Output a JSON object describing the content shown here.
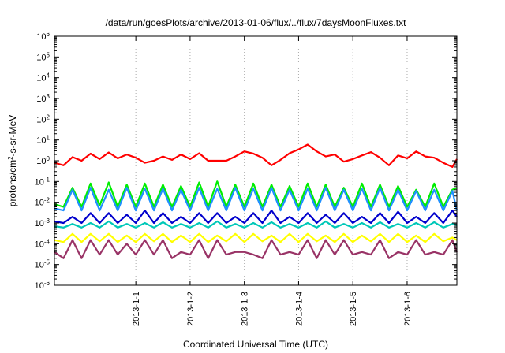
{
  "chart_data": {
    "type": "line",
    "title": "/data/run/goesPlots/archive/2013-01-06/flux/../flux/7daysMoonFluxes.txt",
    "xlabel": "Coordinated Universal Time (UTC)",
    "ylabel": "protons/cm2-s-sr-MeV",
    "ylabel_parts": {
      "pre": "protons/cm",
      "sup": "2",
      "post": "-s-sr-MeV"
    },
    "y_scale": "log",
    "ylim": [
      1e-06,
      1000000.0
    ],
    "xlim": [
      "2012-12-30T12:00",
      "2013-01-06T22:00"
    ],
    "y_ticks": [
      {
        "base": "10",
        "exp": "-6",
        "value": 1e-06
      },
      {
        "base": "10",
        "exp": "-5",
        "value": 1e-05
      },
      {
        "base": "10",
        "exp": "-4",
        "value": 0.0001
      },
      {
        "base": "10",
        "exp": "-3",
        "value": 0.001
      },
      {
        "base": "10",
        "exp": "-2",
        "value": 0.01
      },
      {
        "base": "10",
        "exp": "-1",
        "value": 0.1
      },
      {
        "base": "10",
        "exp": "0",
        "value": 1
      },
      {
        "base": "10",
        "exp": "1",
        "value": 10
      },
      {
        "base": "10",
        "exp": "2",
        "value": 100
      },
      {
        "base": "10",
        "exp": "3",
        "value": 1000
      },
      {
        "base": "10",
        "exp": "4",
        "value": 10000
      },
      {
        "base": "10",
        "exp": "5",
        "value": 100000
      },
      {
        "base": "10",
        "exp": "6",
        "value": 1000000
      }
    ],
    "x_ticks": [
      {
        "label": "2013-1-1",
        "date": "2013-01-01"
      },
      {
        "label": "2013-1-2",
        "date": "2013-01-02"
      },
      {
        "label": "2013-1-3",
        "date": "2013-01-03"
      },
      {
        "label": "2013-1-4",
        "date": "2013-01-04"
      },
      {
        "label": "2013-1-5",
        "date": "2013-01-05"
      },
      {
        "label": "2013-1-6",
        "date": "2013-01-06"
      }
    ],
    "grid": true,
    "legend": "none",
    "x": [
      "2012-12-30T12:00",
      "2012-12-30T16:00",
      "2012-12-30T20:00",
      "2012-12-31T00:00",
      "2012-12-31T04:00",
      "2012-12-31T08:00",
      "2012-12-31T12:00",
      "2012-12-31T16:00",
      "2012-12-31T20:00",
      "2013-01-01T00:00",
      "2013-01-01T04:00",
      "2013-01-01T08:00",
      "2013-01-01T12:00",
      "2013-01-01T16:00",
      "2013-01-01T20:00",
      "2013-01-02T00:00",
      "2013-01-02T04:00",
      "2013-01-02T08:00",
      "2013-01-02T12:00",
      "2013-01-02T16:00",
      "2013-01-02T20:00",
      "2013-01-03T00:00",
      "2013-01-03T04:00",
      "2013-01-03T08:00",
      "2013-01-03T12:00",
      "2013-01-03T16:00",
      "2013-01-03T20:00",
      "2013-01-04T00:00",
      "2013-01-04T04:00",
      "2013-01-04T08:00",
      "2013-01-04T12:00",
      "2013-01-04T16:00",
      "2013-01-04T20:00",
      "2013-01-05T00:00",
      "2013-01-05T04:00",
      "2013-01-05T08:00",
      "2013-01-05T12:00",
      "2013-01-05T16:00",
      "2013-01-05T20:00",
      "2013-01-06T00:00",
      "2013-01-06T04:00",
      "2013-01-06T08:00",
      "2013-01-06T12:00",
      "2013-01-06T16:00",
      "2013-01-06T20:00",
      "2013-01-06T22:00"
    ],
    "series": [
      {
        "color": "#ff0000",
        "values": [
          0.8,
          0.6,
          1.5,
          1.0,
          2.2,
          1.2,
          2.5,
          1.3,
          2.0,
          1.4,
          0.8,
          1.0,
          1.6,
          1.1,
          2.0,
          1.2,
          2.3,
          1.0,
          1.0,
          1.0,
          1.6,
          2.8,
          2.2,
          1.4,
          0.6,
          1.1,
          2.3,
          3.5,
          6.0,
          2.8,
          1.6,
          2.0,
          0.9,
          1.2,
          1.8,
          2.6,
          1.4,
          0.6,
          1.8,
          1.3,
          2.8,
          1.6,
          1.4,
          0.8,
          0.5,
          1.2
        ]
      },
      {
        "color": "#00ee00",
        "values": [
          0.008,
          0.006,
          0.05,
          0.006,
          0.08,
          0.007,
          0.09,
          0.006,
          0.07,
          0.006,
          0.08,
          0.006,
          0.07,
          0.006,
          0.06,
          0.006,
          0.09,
          0.006,
          0.1,
          0.006,
          0.07,
          0.006,
          0.08,
          0.006,
          0.07,
          0.006,
          0.06,
          0.006,
          0.08,
          0.006,
          0.07,
          0.006,
          0.05,
          0.006,
          0.08,
          0.006,
          0.07,
          0.006,
          0.06,
          0.006,
          0.04,
          0.006,
          0.08,
          0.006,
          0.04,
          0.05
        ]
      },
      {
        "color": "#2090ff",
        "values": [
          0.005,
          0.004,
          0.04,
          0.004,
          0.05,
          0.004,
          0.04,
          0.004,
          0.05,
          0.004,
          0.045,
          0.004,
          0.045,
          0.004,
          0.04,
          0.004,
          0.05,
          0.004,
          0.045,
          0.004,
          0.05,
          0.004,
          0.045,
          0.004,
          0.05,
          0.004,
          0.04,
          0.004,
          0.045,
          0.004,
          0.05,
          0.004,
          0.04,
          0.004,
          0.045,
          0.004,
          0.05,
          0.004,
          0.04,
          0.004,
          0.035,
          0.004,
          0.04,
          0.004,
          0.035,
          0.004
        ]
      },
      {
        "color": "#0000cc",
        "values": [
          0.0012,
          0.001,
          0.002,
          0.001,
          0.003,
          0.001,
          0.003,
          0.001,
          0.0025,
          0.001,
          0.004,
          0.001,
          0.003,
          0.001,
          0.002,
          0.001,
          0.003,
          0.001,
          0.003,
          0.001,
          0.002,
          0.001,
          0.003,
          0.001,
          0.004,
          0.001,
          0.002,
          0.001,
          0.003,
          0.001,
          0.0025,
          0.001,
          0.003,
          0.001,
          0.002,
          0.001,
          0.003,
          0.001,
          0.0035,
          0.001,
          0.002,
          0.001,
          0.003,
          0.001,
          0.004,
          0.002
        ]
      },
      {
        "color": "#00c8b8",
        "values": [
          0.0007,
          0.0006,
          0.0009,
          0.0006,
          0.001,
          0.0006,
          0.0012,
          0.0006,
          0.0009,
          0.0006,
          0.001,
          0.0006,
          0.0011,
          0.0006,
          0.0009,
          0.0006,
          0.001,
          0.0006,
          0.0012,
          0.0006,
          0.0009,
          0.0006,
          0.001,
          0.0006,
          0.0011,
          0.0006,
          0.0009,
          0.0006,
          0.001,
          0.0006,
          0.0012,
          0.0006,
          0.0009,
          0.0006,
          0.001,
          0.0006,
          0.0011,
          0.0006,
          0.0009,
          0.0006,
          0.001,
          0.0006,
          0.0011,
          0.0006,
          0.0009,
          0.0008
        ]
      },
      {
        "color": "#ffff00",
        "values": [
          0.00015,
          0.00012,
          0.0003,
          0.00012,
          0.0003,
          0.00013,
          0.0003,
          0.00012,
          0.00025,
          0.00012,
          0.0003,
          0.00013,
          0.0003,
          0.00012,
          0.00025,
          0.00012,
          0.0003,
          0.00012,
          0.00025,
          0.00013,
          0.0003,
          0.00012,
          0.0003,
          0.00013,
          0.00025,
          0.00012,
          0.0003,
          0.00012,
          0.0003,
          0.00013,
          0.00025,
          0.00012,
          0.0003,
          0.00012,
          0.00025,
          0.00013,
          0.0003,
          0.00012,
          0.0003,
          0.00012,
          0.00025,
          0.00012,
          0.0003,
          0.00013,
          0.0002,
          0.00015
        ]
      },
      {
        "color": "#993366",
        "values": [
          4e-05,
          2e-05,
          0.00015,
          2e-05,
          0.00015,
          3e-05,
          0.00015,
          3e-05,
          0.0001,
          3e-05,
          0.00015,
          3e-05,
          0.00015,
          2e-05,
          4e-05,
          3e-05,
          0.00015,
          2e-05,
          0.00015,
          3e-05,
          4e-05,
          4e-05,
          3e-05,
          2e-05,
          0.00015,
          3e-05,
          4e-05,
          3e-05,
          0.00015,
          2e-05,
          0.00015,
          3e-05,
          0.00015,
          3e-05,
          4e-05,
          3e-05,
          0.00015,
          2e-05,
          4e-05,
          3e-05,
          0.00015,
          3e-05,
          4e-05,
          3e-05,
          0.00015,
          4e-05
        ]
      }
    ]
  }
}
